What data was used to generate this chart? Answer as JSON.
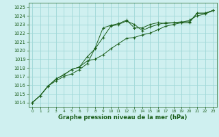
{
  "x": [
    0,
    1,
    2,
    3,
    4,
    5,
    6,
    7,
    8,
    9,
    10,
    11,
    12,
    13,
    14,
    15,
    16,
    17,
    18,
    19,
    20,
    21,
    22,
    23
  ],
  "line1": [
    1014.0,
    1014.8,
    1015.9,
    1016.5,
    1017.0,
    1017.3,
    1017.8,
    1018.5,
    1020.3,
    1022.6,
    1022.9,
    1023.1,
    1023.5,
    1022.6,
    1022.6,
    1023.0,
    1023.2,
    1023.1,
    1023.2,
    1023.2,
    1023.2,
    1024.3,
    1024.3,
    1024.6
  ],
  "line2": [
    1014.0,
    1014.8,
    1015.9,
    1016.7,
    1017.2,
    1017.8,
    1018.1,
    1019.3,
    1020.2,
    1021.5,
    1022.8,
    1023.0,
    1023.4,
    1023.0,
    1022.3,
    1022.7,
    1023.0,
    1023.2,
    1023.2,
    1023.3,
    1023.3,
    1024.3,
    1024.3,
    1024.6
  ],
  "line3": [
    1014.0,
    1014.8,
    1015.9,
    1016.7,
    1017.2,
    1017.8,
    1018.1,
    1018.8,
    1019.0,
    1019.5,
    1020.2,
    1020.8,
    1021.4,
    1021.5,
    1021.8,
    1022.0,
    1022.4,
    1022.8,
    1023.0,
    1023.2,
    1023.5,
    1024.0,
    1024.2,
    1024.6
  ],
  "bg_color": "#cff0f0",
  "grid_color": "#a0d8d8",
  "line_color": "#1a5e1a",
  "xlabel": "Graphe pression niveau de la mer (hPa)",
  "ylim": [
    1013.5,
    1025.5
  ],
  "yticks": [
    1014,
    1015,
    1016,
    1017,
    1018,
    1019,
    1020,
    1021,
    1022,
    1023,
    1024,
    1025
  ],
  "xticks": [
    0,
    1,
    2,
    3,
    4,
    5,
    6,
    7,
    8,
    9,
    10,
    11,
    12,
    13,
    14,
    15,
    16,
    17,
    18,
    19,
    20,
    21,
    22,
    23
  ],
  "figsize": [
    3.2,
    2.0
  ],
  "dpi": 100
}
